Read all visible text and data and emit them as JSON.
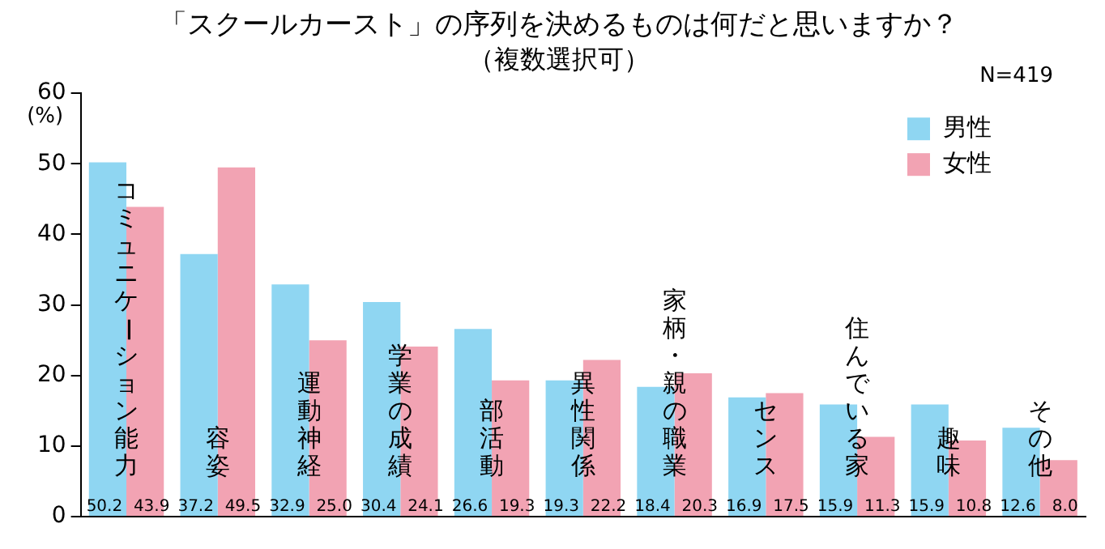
{
  "chart_data": {
    "type": "bar",
    "title": "「スクールカースト」の序列を決めるものは何だと思いますか？",
    "subtitle": "（複数選択可）",
    "ylabel": "(%)",
    "annotations": [
      "N=419"
    ],
    "categories": [
      "コミュニケーション能力",
      "容姿",
      "運動神経",
      "学業の成績",
      "部活動",
      "異性関係",
      "家柄・親の職業",
      "センス",
      "住んでいる家",
      "趣味",
      "その他"
    ],
    "series": [
      {
        "name": "男性",
        "color": "#8fd6f2",
        "values": [
          50.2,
          37.2,
          32.9,
          30.4,
          26.6,
          19.3,
          18.4,
          16.9,
          15.9,
          15.9,
          12.6
        ],
        "value_labels": [
          "50.2",
          "37.2",
          "32.9",
          "30.4",
          "26.6",
          "19.3",
          "18.4",
          "16.9",
          "15.9",
          "15.9",
          "12.6"
        ]
      },
      {
        "name": "女性",
        "color": "#f2a3b3",
        "values": [
          43.9,
          49.5,
          25.0,
          24.1,
          19.3,
          22.2,
          20.3,
          17.5,
          11.3,
          10.8,
          8.0
        ],
        "value_labels": [
          "43.9",
          "49.5",
          "25.0",
          "24.1",
          "19.3",
          "22.2",
          "20.3",
          "17.5",
          "11.3",
          "10.8",
          "8.0"
        ]
      }
    ],
    "ylim": [
      0,
      60
    ],
    "yticks": [
      0,
      10,
      20,
      30,
      40,
      50,
      60
    ],
    "grid": false,
    "legend": "top right"
  }
}
